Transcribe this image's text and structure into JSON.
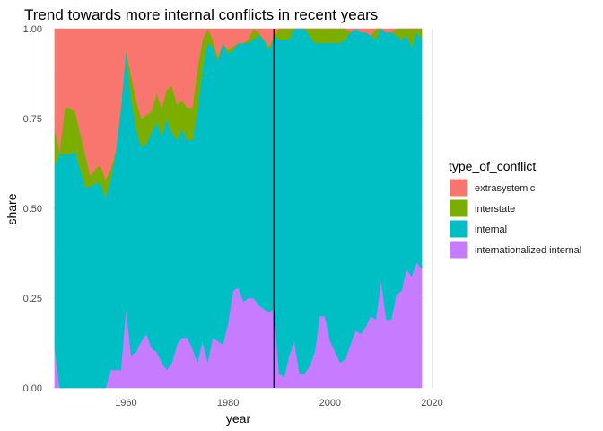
{
  "chart_data": {
    "type": "area",
    "stacked": true,
    "title": "Trend towards more internal conflicts in recent years",
    "xlabel": "year",
    "ylabel": "share",
    "xlim": [
      1945.5,
      2018.5
    ],
    "ylim": [
      0,
      1
    ],
    "x_ticks": [
      1960,
      1980,
      2000,
      2020
    ],
    "y_ticks": [
      0.0,
      0.25,
      0.5,
      0.75,
      1.0
    ],
    "y_tick_labels": [
      "0.00",
      "0.25",
      "0.50",
      "0.75",
      "1.00"
    ],
    "grid": true,
    "legend_title": "type_of_conflict",
    "legend_position": "right",
    "vline_x": 1989,
    "x": [
      1946,
      1947,
      1948,
      1949,
      1950,
      1951,
      1952,
      1953,
      1954,
      1955,
      1956,
      1957,
      1958,
      1959,
      1960,
      1961,
      1962,
      1963,
      1964,
      1965,
      1966,
      1967,
      1968,
      1969,
      1970,
      1971,
      1972,
      1973,
      1974,
      1975,
      1976,
      1977,
      1978,
      1979,
      1980,
      1981,
      1982,
      1983,
      1984,
      1985,
      1986,
      1987,
      1988,
      1989,
      1990,
      1991,
      1992,
      1993,
      1994,
      1995,
      1996,
      1997,
      1998,
      1999,
      2000,
      2001,
      2002,
      2003,
      2004,
      2005,
      2006,
      2007,
      2008,
      2009,
      2010,
      2011,
      2012,
      2013,
      2014,
      2015,
      2016,
      2017,
      2018
    ],
    "series": [
      {
        "name": "internationalized internal",
        "color": "#C77CFF",
        "values": [
          0.11,
          0,
          0,
          0,
          0,
          0,
          0,
          0,
          0,
          0,
          0,
          0.05,
          0.05,
          0.05,
          0.22,
          0.09,
          0.1,
          0.13,
          0.15,
          0.11,
          0.1,
          0.07,
          0.05,
          0.07,
          0.12,
          0.14,
          0.14,
          0.11,
          0.07,
          0.13,
          0.07,
          0.14,
          0.13,
          0.12,
          0.18,
          0.27,
          0.28,
          0.24,
          0.25,
          0.25,
          0.23,
          0.22,
          0.21,
          0.22,
          0.04,
          0.03,
          0.09,
          0.13,
          0.04,
          0.04,
          0.06,
          0.1,
          0.2,
          0.2,
          0.13,
          0.1,
          0.07,
          0.08,
          0.12,
          0.16,
          0.15,
          0.17,
          0.2,
          0.19,
          0.3,
          0.19,
          0.19,
          0.26,
          0.27,
          0.33,
          0.31,
          0.35,
          0.33
        ]
      },
      {
        "name": "internal",
        "color": "#00BFC4",
        "values": [
          0.51,
          0.65,
          0.65,
          0.65,
          0.66,
          0.61,
          0.56,
          0.56,
          0.57,
          0.57,
          0.53,
          0.53,
          0.61,
          0.73,
          0.72,
          0.71,
          0.62,
          0.54,
          0.53,
          0.6,
          0.64,
          0.63,
          0.7,
          0.64,
          0.57,
          0.58,
          0.55,
          0.58,
          0.7,
          0.76,
          0.89,
          0.81,
          0.78,
          0.84,
          0.75,
          0.67,
          0.68,
          0.72,
          0.71,
          0.72,
          0.75,
          0.75,
          0.73,
          0.76,
          0.93,
          0.94,
          0.88,
          0.87,
          0.96,
          0.96,
          0.92,
          0.86,
          0.76,
          0.76,
          0.83,
          0.86,
          0.89,
          0.89,
          0.87,
          0.84,
          0.84,
          0.82,
          0.78,
          0.78,
          0.7,
          0.8,
          0.8,
          0.72,
          0.7,
          0.65,
          0.64,
          0.64,
          0.64
        ]
      },
      {
        "name": "interstate",
        "color": "#7CAE00",
        "values": [
          0.1,
          0.01,
          0.13,
          0.13,
          0.11,
          0.1,
          0.09,
          0.03,
          0.04,
          0.05,
          0.05,
          0.03,
          0,
          0,
          0,
          0.07,
          0.08,
          0.08,
          0.08,
          0.06,
          0.08,
          0.08,
          0.08,
          0.13,
          0.1,
          0.08,
          0.09,
          0.09,
          0.12,
          0.08,
          0.04,
          0.02,
          0.01,
          0,
          0.01,
          0.01,
          0,
          0,
          0.01,
          0.03,
          0.01,
          0,
          0.01,
          0,
          0.03,
          0.03,
          0.03,
          0,
          0,
          0,
          0.02,
          0.04,
          0.04,
          0.04,
          0.04,
          0.04,
          0.04,
          0.03,
          0,
          0,
          0,
          0,
          0,
          0.03,
          0,
          0,
          0,
          0.02,
          0.03,
          0.02,
          0.05,
          0.01,
          0.03
        ]
      },
      {
        "name": "extrasystemic",
        "color": "#F8766D",
        "values": [
          0.28,
          0.34,
          0.22,
          0.22,
          0.23,
          0.29,
          0.35,
          0.41,
          0.39,
          0.38,
          0.42,
          0.39,
          0.34,
          0.22,
          0.06,
          0.13,
          0.2,
          0.25,
          0.24,
          0.23,
          0.18,
          0.22,
          0.17,
          0.16,
          0.21,
          0.2,
          0.22,
          0.22,
          0.11,
          0.03,
          0,
          0.03,
          0.08,
          0.04,
          0.06,
          0.05,
          0.04,
          0.04,
          0.03,
          0,
          0.01,
          0.03,
          0.05,
          0.02,
          0,
          0,
          0,
          0,
          0,
          0,
          0,
          0,
          0,
          0,
          0,
          0,
          0,
          0,
          0.01,
          0,
          0.01,
          0.01,
          0.02,
          0,
          0,
          0.01,
          0.01,
          0,
          0,
          0,
          0,
          0,
          0
        ]
      }
    ],
    "legend_order": [
      "extrasystemic",
      "interstate",
      "internal",
      "internationalized internal"
    ]
  }
}
